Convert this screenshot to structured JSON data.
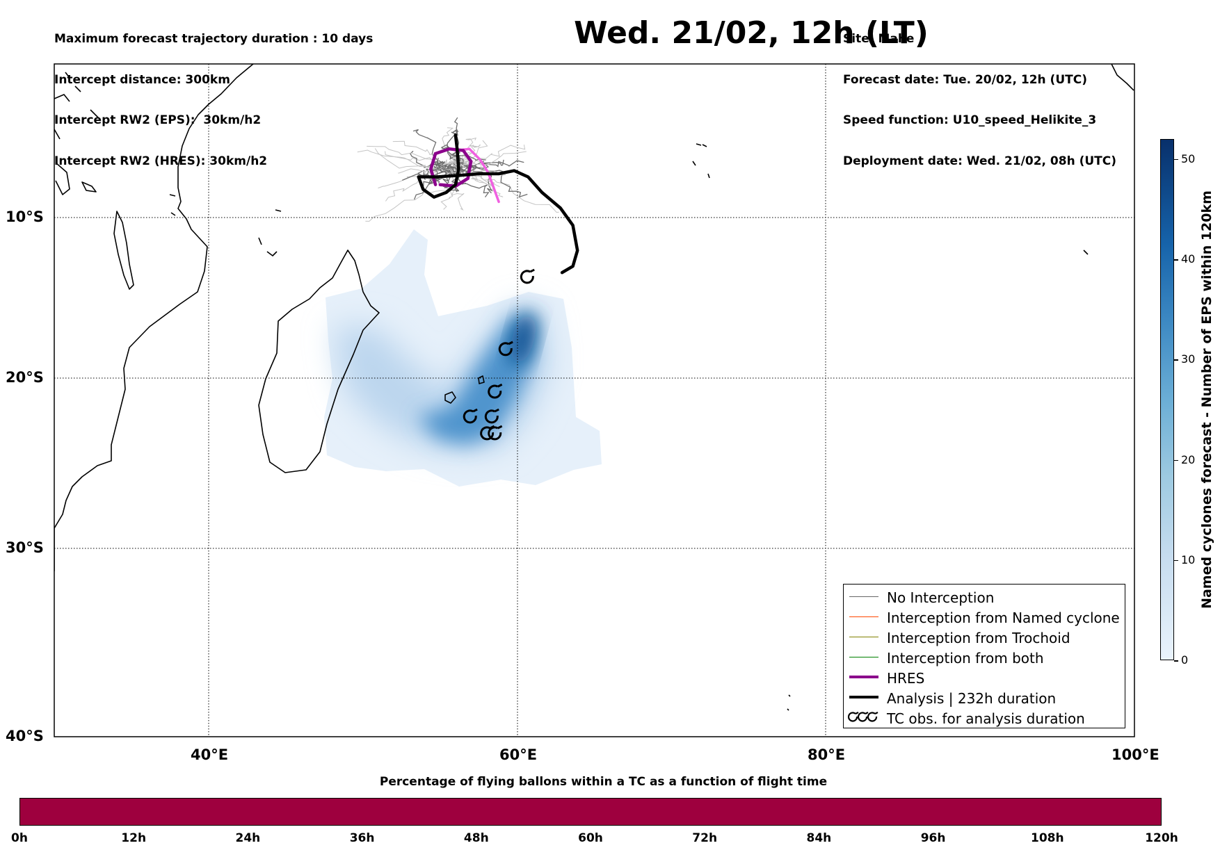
{
  "header": {
    "left": [
      "Maximum forecast trajectory duration : 10 days",
      "Intercept distance: 300km",
      "Intercept RW2 (EPS):  30km/h2",
      "Intercept RW2 (HRES): 30km/h2"
    ],
    "title": "Wed. 21/02, 12h (LT)",
    "right": [
      "Site: Mahe",
      "Forecast date: Tue. 20/02, 12h (UTC)",
      "Speed function: U10_speed_Helikite_3",
      "Deployment date: Wed. 21/02, 08h (UTC)"
    ]
  },
  "map": {
    "lon_range": [
      30,
      100
    ],
    "lat_range": [
      -40,
      0
    ],
    "lat_labels": [
      {
        "lat": -10,
        "text": "10°S"
      },
      {
        "lat": -20,
        "text": "20°S"
      },
      {
        "lat": -30,
        "text": "30°S"
      },
      {
        "lat": -40,
        "text": "40°S"
      }
    ],
    "lon_labels": [
      {
        "lon": 40,
        "text": "40°E"
      },
      {
        "lon": 60,
        "text": "60°E"
      },
      {
        "lon": 80,
        "text": "80°E"
      },
      {
        "lon": 100,
        "text": "100°E"
      }
    ],
    "analysis_track": [
      [
        56.0,
        -4.6
      ],
      [
        56.1,
        -5.5
      ],
      [
        56.2,
        -6.8
      ],
      [
        56.0,
        -7.8
      ],
      [
        55.4,
        -8.3
      ],
      [
        54.6,
        -8.6
      ],
      [
        53.9,
        -8.1
      ],
      [
        53.6,
        -7.3
      ],
      [
        54.8,
        -7.3
      ],
      [
        56.3,
        -7.2
      ],
      [
        57.5,
        -7.1
      ],
      [
        58.8,
        -7.1
      ],
      [
        59.8,
        -6.9
      ],
      [
        60.7,
        -7.3
      ],
      [
        61.6,
        -8.3
      ],
      [
        62.8,
        -9.3
      ],
      [
        63.6,
        -10.4
      ],
      [
        63.9,
        -12.0
      ],
      [
        63.6,
        -13.0
      ],
      [
        62.9,
        -13.4
      ]
    ],
    "hres_track": [
      [
        54.7,
        -7.8
      ],
      [
        54.4,
        -6.8
      ],
      [
        54.7,
        -5.8
      ],
      [
        55.6,
        -5.5
      ],
      [
        56.5,
        -5.6
      ],
      [
        57.0,
        -6.3
      ],
      [
        56.8,
        -7.4
      ],
      [
        56.0,
        -7.9
      ],
      [
        55.0,
        -7.8
      ]
    ],
    "pink_track": [
      [
        56.0,
        -5.6
      ],
      [
        56.9,
        -5.5
      ],
      [
        57.6,
        -6.2
      ],
      [
        58.1,
        -7.0
      ],
      [
        58.4,
        -7.8
      ],
      [
        58.8,
        -8.9
      ]
    ],
    "tc_obs": [
      [
        60.7,
        -13.7
      ],
      [
        59.3,
        -18.2
      ],
      [
        58.6,
        -20.8
      ],
      [
        57.0,
        -22.3
      ],
      [
        58.4,
        -22.3
      ],
      [
        58.1,
        -23.3
      ],
      [
        58.6,
        -23.3
      ]
    ],
    "density_hotspot": [
      60.2,
      -18.0
    ]
  },
  "legend": {
    "items": [
      {
        "label": "No Interception",
        "color": "#666666",
        "width": 1.2
      },
      {
        "label": "Interception from Named cyclone",
        "color": "#ff4500",
        "width": 1.2
      },
      {
        "label": "Interception from Trochoid",
        "color": "#808000",
        "width": 1.2
      },
      {
        "label": "Interception from both",
        "color": "#008000",
        "width": 1.2
      },
      {
        "label": "HRES",
        "color": "#8b008b",
        "width": 4
      },
      {
        "label": "Analysis | 232h duration",
        "color": "#000000",
        "width": 4
      },
      {
        "label": "TC obs. for analysis duration",
        "color": "#000000",
        "width": 0
      }
    ]
  },
  "colorbar": {
    "title": "Named cyclones forecast - Number of EPS within 120km",
    "min": 0,
    "max": 52,
    "ticks": [
      0,
      10,
      20,
      30,
      40,
      50
    ]
  },
  "bottom_bar": {
    "title": "Percentage of flying ballons within a TC as a function of flight time",
    "ticks": [
      "0h",
      "12h",
      "24h",
      "36h",
      "48h",
      "60h",
      "72h",
      "84h",
      "96h",
      "108h",
      "120h"
    ]
  }
}
